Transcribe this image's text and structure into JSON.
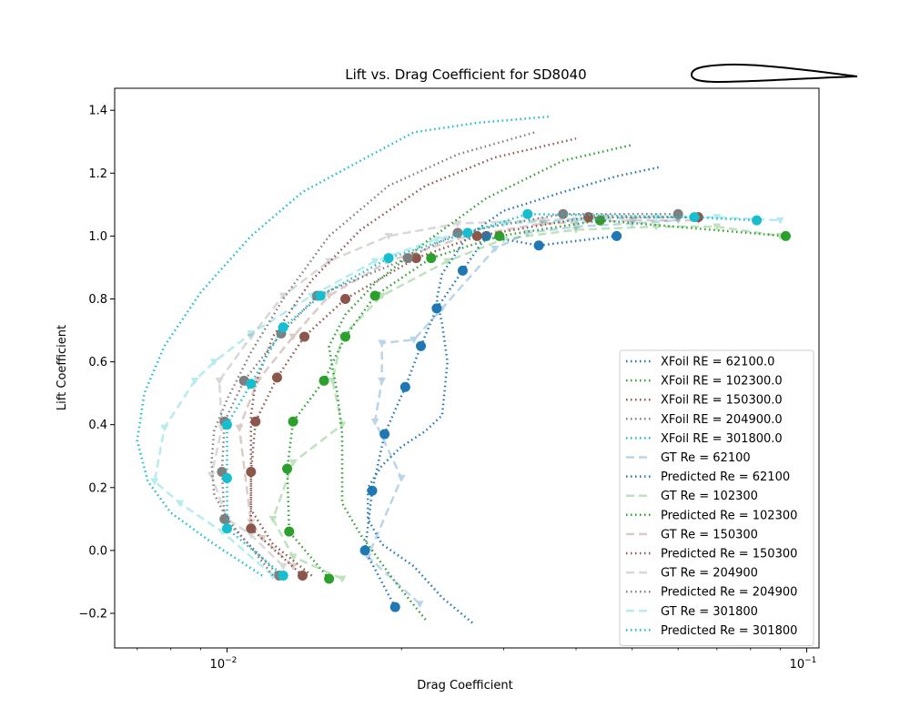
{
  "chart_data": {
    "type": "line",
    "title": "Lift vs. Drag Coefficient for SD8040",
    "xlabel": "Drag Coefficient",
    "ylabel": "Lift Coefficient",
    "xscale": "log",
    "xlim": [
      0.0064,
      0.105
    ],
    "ylim": [
      -0.31,
      1.47
    ],
    "x_ticks": [
      {
        "value": 0.01,
        "label": "10^-2"
      },
      {
        "value": 0.1,
        "label": "10^-1"
      }
    ],
    "y_ticks": [
      {
        "value": -0.2,
        "label": "−0.2"
      },
      {
        "value": 0.0,
        "label": "0.0"
      },
      {
        "value": 0.2,
        "label": "0.2"
      },
      {
        "value": 0.4,
        "label": "0.4"
      },
      {
        "value": 0.6,
        "label": "0.6"
      },
      {
        "value": 0.8,
        "label": "0.8"
      },
      {
        "value": 1.0,
        "label": "1.0"
      },
      {
        "value": 1.2,
        "label": "1.2"
      },
      {
        "value": 1.4,
        "label": "1.4"
      }
    ],
    "legend_position": "lower-right",
    "series": [
      {
        "name": "XFoil RE = 62100.0",
        "style": "dotted",
        "color": "#1f77b4",
        "opacity": 1,
        "marker": "none",
        "x": [
          0.0265,
          0.0235,
          0.021,
          0.0185,
          0.0175,
          0.0175,
          0.0185,
          0.02,
          0.022,
          0.0235,
          0.024,
          0.0235,
          0.023,
          0.0235,
          0.026,
          0.03,
          0.038,
          0.047,
          0.056
        ],
        "y": [
          -0.23,
          -0.15,
          -0.05,
          0.02,
          0.1,
          0.2,
          0.27,
          0.33,
          0.38,
          0.43,
          0.6,
          0.72,
          0.8,
          0.88,
          1.0,
          1.08,
          1.14,
          1.19,
          1.22
        ]
      },
      {
        "name": "XFoil RE = 102300.0",
        "style": "dotted",
        "color": "#2ca02c",
        "opacity": 1,
        "marker": "none",
        "x": [
          0.022,
          0.0195,
          0.017,
          0.0158,
          0.0158,
          0.0158,
          0.0155,
          0.0152,
          0.015,
          0.016,
          0.018,
          0.022,
          0.028,
          0.038,
          0.05
        ],
        "y": [
          -0.22,
          -0.1,
          0.05,
          0.15,
          0.25,
          0.37,
          0.5,
          0.58,
          0.65,
          0.75,
          0.85,
          0.98,
          1.12,
          1.24,
          1.29
        ]
      },
      {
        "name": "XFoil RE = 150300.0",
        "style": "dotted",
        "color": "#8c564b",
        "opacity": 1,
        "marker": "none",
        "x": [
          0.014,
          0.012,
          0.011,
          0.011,
          0.011,
          0.011,
          0.0112,
          0.012,
          0.014,
          0.017,
          0.022,
          0.029,
          0.04
        ],
        "y": [
          -0.08,
          0.02,
          0.13,
          0.23,
          0.33,
          0.43,
          0.53,
          0.68,
          0.86,
          1.02,
          1.16,
          1.25,
          1.31
        ]
      },
      {
        "name": "XFoil RE = 204900.0",
        "style": "dotted",
        "color": "#7f7f7f",
        "opacity": 1,
        "marker": "none",
        "x": [
          0.012,
          0.011,
          0.01,
          0.0095,
          0.0094,
          0.0095,
          0.01,
          0.011,
          0.0125,
          0.015,
          0.019,
          0.025,
          0.034
        ],
        "y": [
          -0.08,
          0.01,
          0.1,
          0.18,
          0.28,
          0.38,
          0.48,
          0.63,
          0.8,
          1.0,
          1.16,
          1.26,
          1.33
        ]
      },
      {
        "name": "XFoil RE = 301800.0",
        "style": "dotted",
        "color": "#17becf",
        "opacity": 1,
        "marker": "none",
        "x": [
          0.0115,
          0.0095,
          0.008,
          0.0073,
          0.007,
          0.0072,
          0.0078,
          0.009,
          0.011,
          0.0135,
          0.017,
          0.021,
          0.027,
          0.036
        ],
        "y": [
          -0.08,
          0.02,
          0.12,
          0.22,
          0.35,
          0.5,
          0.65,
          0.82,
          1.0,
          1.14,
          1.24,
          1.33,
          1.36,
          1.38
        ]
      },
      {
        "name": "GT Re = 62100",
        "style": "dashed",
        "color": "#1f77b4",
        "opacity": 0.3,
        "marker": "triangle",
        "x": [
          0.0215,
          0.0175,
          0.02,
          0.018,
          0.0185,
          0.0185,
          0.021,
          0.0235,
          0.029,
          0.033,
          0.04,
          0.05,
          0.06
        ],
        "y": [
          -0.17,
          -0.02,
          0.23,
          0.41,
          0.54,
          0.66,
          0.67,
          0.77,
          0.96,
          1.01,
          1.03,
          1.04,
          1.05
        ]
      },
      {
        "name": "Predicted Re = 62100",
        "style": "dotted",
        "color": "#1f77b4",
        "opacity": 1,
        "marker": "circle",
        "x": [
          0.0195,
          0.0173,
          0.0178,
          0.0187,
          0.0203,
          0.0216,
          0.023,
          0.0255,
          0.028,
          0.0345,
          0.047
        ],
        "y": [
          -0.18,
          0.0,
          0.19,
          0.37,
          0.52,
          0.65,
          0.77,
          0.89,
          1.0,
          0.97,
          1.0
        ]
      },
      {
        "name": "GT Re = 102300",
        "style": "dashed",
        "color": "#2ca02c",
        "opacity": 0.3,
        "marker": "triangle",
        "x": [
          0.0158,
          0.013,
          0.012,
          0.013,
          0.0158,
          0.0152,
          0.0158,
          0.0185,
          0.024,
          0.03,
          0.04,
          0.055,
          0.07,
          0.09
        ],
        "y": [
          -0.09,
          -0.02,
          0.1,
          0.28,
          0.4,
          0.54,
          0.68,
          0.81,
          0.92,
          0.99,
          1.02,
          1.03,
          1.03,
          1.0
        ]
      },
      {
        "name": "Predicted Re = 102300",
        "style": "dotted",
        "color": "#2ca02c",
        "opacity": 1,
        "marker": "circle",
        "x": [
          0.015,
          0.0128,
          0.0127,
          0.013,
          0.0147,
          0.016,
          0.018,
          0.0225,
          0.0295,
          0.044,
          0.092
        ],
        "y": [
          -0.09,
          0.06,
          0.26,
          0.41,
          0.54,
          0.68,
          0.81,
          0.93,
          1.0,
          1.05,
          1.0
        ]
      },
      {
        "name": "GT Re = 150300",
        "style": "dashed",
        "color": "#8c564b",
        "opacity": 0.3,
        "marker": "triangle",
        "x": [
          0.013,
          0.0115,
          0.011,
          0.0105,
          0.0113,
          0.013,
          0.015,
          0.019,
          0.026,
          0.035,
          0.05,
          0.065
        ],
        "y": [
          -0.05,
          0.04,
          0.09,
          0.39,
          0.54,
          0.68,
          0.81,
          0.92,
          1.0,
          1.04,
          1.05,
          1.05
        ]
      },
      {
        "name": "Predicted Re = 150300",
        "style": "dotted",
        "color": "#8c564b",
        "opacity": 1,
        "marker": "circle",
        "x": [
          0.0135,
          0.011,
          0.011,
          0.0112,
          0.0122,
          0.0136,
          0.016,
          0.0212,
          0.027,
          0.042,
          0.065
        ],
        "y": [
          -0.08,
          0.07,
          0.25,
          0.41,
          0.55,
          0.68,
          0.8,
          0.93,
          1.0,
          1.06,
          1.06
        ]
      },
      {
        "name": "GT Re = 204900",
        "style": "dashed",
        "color": "#7f7f7f",
        "opacity": 0.3,
        "marker": "triangle",
        "x": [
          0.0125,
          0.011,
          0.01,
          0.0094,
          0.0098,
          0.0097,
          0.011,
          0.0125,
          0.015,
          0.019,
          0.025,
          0.035,
          0.045,
          0.06
        ],
        "y": [
          -0.05,
          0.05,
          0.1,
          0.24,
          0.39,
          0.54,
          0.68,
          0.81,
          0.92,
          1.0,
          1.04,
          1.05,
          1.06,
          1.06
        ]
      },
      {
        "name": "Predicted Re = 204900",
        "style": "dotted",
        "color": "#7f7f7f",
        "opacity": 1,
        "marker": "circle",
        "x": [
          0.0123,
          0.0099,
          0.0098,
          0.0099,
          0.0107,
          0.0124,
          0.0143,
          0.0205,
          0.025,
          0.038,
          0.06
        ],
        "y": [
          -0.08,
          0.1,
          0.25,
          0.41,
          0.54,
          0.69,
          0.81,
          0.93,
          1.01,
          1.07,
          1.07
        ]
      },
      {
        "name": "GT Re = 301800",
        "style": "dashed",
        "color": "#17becf",
        "opacity": 0.3,
        "marker": "triangle",
        "x": [
          0.012,
          0.0098,
          0.0083,
          0.0075,
          0.0078,
          0.0088,
          0.0095,
          0.011,
          0.014,
          0.018,
          0.023,
          0.03,
          0.04,
          0.055,
          0.07,
          0.09
        ],
        "y": [
          -0.08,
          0.06,
          0.15,
          0.22,
          0.39,
          0.54,
          0.6,
          0.69,
          0.81,
          0.92,
          0.99,
          1.04,
          1.05,
          1.06,
          1.06,
          1.05
        ]
      },
      {
        "name": "Predicted Re = 301800",
        "style": "dotted",
        "color": "#17becf",
        "opacity": 1,
        "marker": "circle",
        "x": [
          0.0125,
          0.01,
          0.01,
          0.01,
          0.011,
          0.0125,
          0.0145,
          0.019,
          0.026,
          0.033,
          0.064,
          0.082
        ],
        "y": [
          -0.08,
          0.07,
          0.23,
          0.4,
          0.53,
          0.71,
          0.81,
          0.93,
          1.01,
          1.07,
          1.06,
          1.05
        ]
      }
    ]
  }
}
